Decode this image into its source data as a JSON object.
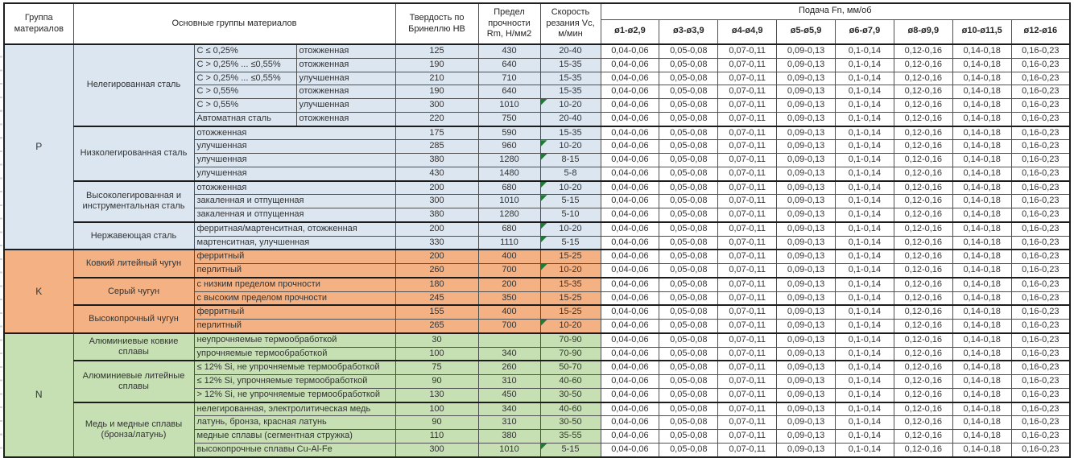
{
  "table": {
    "headers": {
      "group": "Группа материалов",
      "main_groups": "Основные группы материалов",
      "hardness": "Твердость по Бринеллю HB",
      "strength": "Предел прочности Rm, Н/мм2",
      "speed": "Скорость резания Vc, м/мин",
      "feed": "Подача Fn, мм/об",
      "feed_columns": [
        "ø1-ø2,9",
        "ø3-ø3,9",
        "ø4-ø4,9",
        "ø5-ø5,9",
        "ø6-ø7,9",
        "ø8-ø9,9",
        "ø10-ø11,5",
        "ø12-ø16"
      ]
    },
    "feed_values": [
      "0,04-0,06",
      "0,05-0,08",
      "0,07-0,11",
      "0,09-0,13",
      "0,1-0,14",
      "0,12-0,16",
      "0,14-0,18",
      "0,16-0,23"
    ],
    "colors": {
      "group_p_bg": "#dce6f1",
      "group_k_bg": "#f4b183",
      "group_n_bg": "#c6e0b4",
      "marker_green": "#1f7a36",
      "border_dark": "#1c1c1c"
    },
    "groups": [
      {
        "letter": "P",
        "color": "#dce6f1",
        "subgroups": [
          {
            "name": "Нелегированная сталь",
            "rows": [
              {
                "cond": [
                  "C ≤ 0,25%",
                  "отожженная"
                ],
                "hb": "125",
                "rm": "430",
                "vc": "20-40",
                "marker": false
              },
              {
                "cond": [
                  "C > 0,25% ... ≤0,55%",
                  "отожженная"
                ],
                "hb": "190",
                "rm": "640",
                "vc": "15-35",
                "marker": false
              },
              {
                "cond": [
                  "C > 0,25% ... ≤0,55%",
                  "улучшенная"
                ],
                "hb": "210",
                "rm": "710",
                "vc": "15-35",
                "marker": false
              },
              {
                "cond": [
                  "C > 0,55%",
                  "отожженная"
                ],
                "hb": "190",
                "rm": "640",
                "vc": "15-35",
                "marker": false
              },
              {
                "cond": [
                  "C > 0,55%",
                  "улучшенная"
                ],
                "hb": "300",
                "rm": "1010",
                "vc": "10-20",
                "marker": true
              },
              {
                "cond": [
                  "Автоматная сталь",
                  "отожженная"
                ],
                "hb": "220",
                "rm": "750",
                "vc": "20-40",
                "marker": false
              }
            ]
          },
          {
            "name": "Низколегированная сталь",
            "rows": [
              {
                "cond": [
                  "отожженная"
                ],
                "hb": "175",
                "rm": "590",
                "vc": "15-35",
                "marker": false
              },
              {
                "cond": [
                  "улучшенная"
                ],
                "hb": "285",
                "rm": "960",
                "vc": "10-20",
                "marker": true
              },
              {
                "cond": [
                  "улучшенная"
                ],
                "hb": "380",
                "rm": "1280",
                "vc": "8-15",
                "marker": true
              },
              {
                "cond": [
                  "улучшенная"
                ],
                "hb": "430",
                "rm": "1480",
                "vc": "5-8",
                "marker": false
              }
            ]
          },
          {
            "name": "Высоколегированная и инструментальная сталь",
            "rows": [
              {
                "cond": [
                  "отожженная"
                ],
                "hb": "200",
                "rm": "680",
                "vc": "10-20",
                "marker": true
              },
              {
                "cond": [
                  "закаленная и отпущенная"
                ],
                "hb": "300",
                "rm": "1010",
                "vc": "5-15",
                "marker": true
              },
              {
                "cond": [
                  "закаленная и отпущенная"
                ],
                "hb": "380",
                "rm": "1280",
                "vc": "5-10",
                "marker": false
              }
            ]
          },
          {
            "name": "Нержавеющая сталь",
            "rows": [
              {
                "cond": [
                  "ферритная/мартенситная, отожженная"
                ],
                "hb": "200",
                "rm": "680",
                "vc": "10-20",
                "marker": true
              },
              {
                "cond": [
                  "мартенситная, улучшенная"
                ],
                "hb": "330",
                "rm": "1110",
                "vc": "5-15",
                "marker": true
              }
            ]
          }
        ]
      },
      {
        "letter": "K",
        "color": "#f4b183",
        "subgroups": [
          {
            "name": "Ковкий литейный чугун",
            "rows": [
              {
                "cond": [
                  "ферритный"
                ],
                "hb": "200",
                "rm": "400",
                "vc": "15-25",
                "marker": false
              },
              {
                "cond": [
                  "перлитный"
                ],
                "hb": "260",
                "rm": "700",
                "vc": "10-20",
                "marker": true
              }
            ]
          },
          {
            "name": "Серый чугун",
            "rows": [
              {
                "cond": [
                  "с низким пределом прочности"
                ],
                "hb": "180",
                "rm": "200",
                "vc": "15-35",
                "marker": false
              },
              {
                "cond": [
                  "с высоким пределом прочности"
                ],
                "hb": "245",
                "rm": "350",
                "vc": "15-25",
                "marker": false
              }
            ]
          },
          {
            "name": "Высокопрочный чугун",
            "rows": [
              {
                "cond": [
                  "ферритный"
                ],
                "hb": "155",
                "rm": "400",
                "vc": "15-25",
                "marker": false
              },
              {
                "cond": [
                  "перлитный"
                ],
                "hb": "265",
                "rm": "700",
                "vc": "10-20",
                "marker": true
              }
            ]
          }
        ]
      },
      {
        "letter": "N",
        "color": "#c6e0b4",
        "subgroups": [
          {
            "name": "Алюминиевые ковкие сплавы",
            "rows": [
              {
                "cond": [
                  "неупрочняемые термообработкой"
                ],
                "hb": "30",
                "rm": "",
                "vc": "70-90",
                "marker": false
              },
              {
                "cond": [
                  "упрочняемые термообработкой"
                ],
                "hb": "100",
                "rm": "340",
                "vc": "70-90",
                "marker": false
              }
            ]
          },
          {
            "name": "Алюминиевые литейные сплавы",
            "rows": [
              {
                "cond": [
                  "≤ 12% Si, не упрочняемые термообработкой"
                ],
                "hb": "75",
                "rm": "260",
                "vc": "50-70",
                "marker": false
              },
              {
                "cond": [
                  "≤ 12% Si, упрочняемые термообработкой"
                ],
                "hb": "90",
                "rm": "310",
                "vc": "40-60",
                "marker": false
              },
              {
                "cond": [
                  "> 12% Si, не упрочняемые термообработкой"
                ],
                "hb": "130",
                "rm": "450",
                "vc": "30-50",
                "marker": false
              }
            ]
          },
          {
            "name": "Медь и медные сплавы (бронза/латунь)",
            "rows": [
              {
                "cond": [
                  "нелегированная, электролитическая медь"
                ],
                "hb": "100",
                "rm": "340",
                "vc": "40-60",
                "marker": false
              },
              {
                "cond": [
                  "латунь, бронза, красная латунь"
                ],
                "hb": "90",
                "rm": "310",
                "vc": "30-50",
                "marker": false
              },
              {
                "cond": [
                  "медные сплавы (сегментная стружка)"
                ],
                "hb": "110",
                "rm": "380",
                "vc": "35-55",
                "marker": false
              },
              {
                "cond": [
                  "высокопрочные сплавы Cu-Al-Fe"
                ],
                "hb": "300",
                "rm": "1010",
                "vc": "5-15",
                "marker": true
              }
            ]
          }
        ]
      }
    ]
  }
}
